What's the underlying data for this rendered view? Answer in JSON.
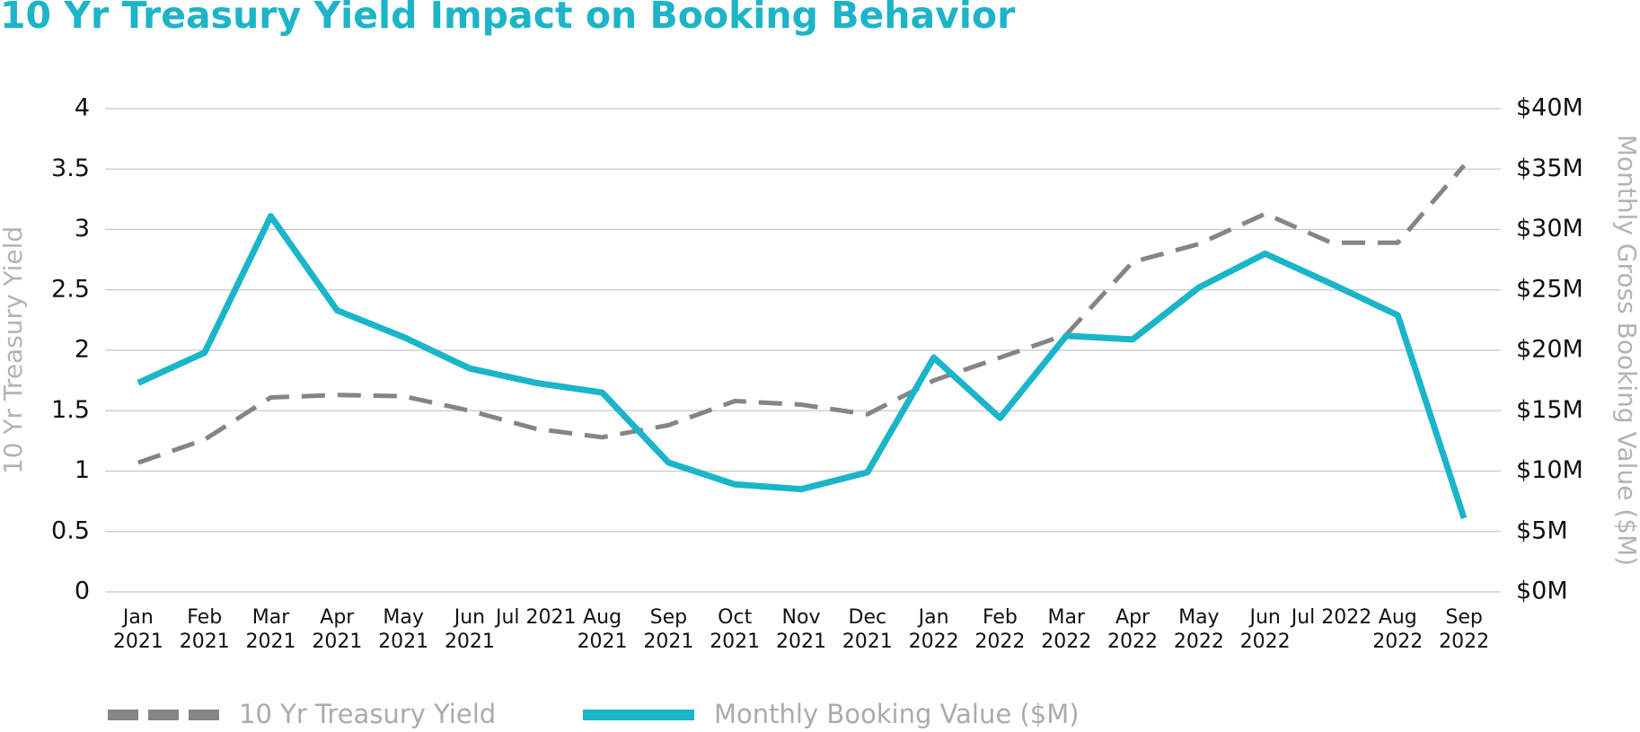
{
  "chart_data": {
    "type": "line",
    "title": "10 Yr Treasury Yield Impact on Booking Behavior",
    "y_label": "10 Yr Treasury Yield",
    "y2_label": "Monthly Gross Booking Value ($M)",
    "categories": [
      "Jan 2021",
      "Feb 2021",
      "Mar 2021",
      "Apr 2021",
      "May 2021",
      "Jun 2021",
      "Jul 2021",
      "Aug 2021",
      "Sep 2021",
      "Oct 2021",
      "Nov 2021",
      "Dec 2021",
      "Jan 2022",
      "Feb 2022",
      "Mar 2022",
      "Apr 2022",
      "May 2022",
      "Jun 2022",
      "Jul 2022",
      "Aug 2022",
      "Sep 2022"
    ],
    "series": [
      {
        "name": "10 Yr Treasury Yield",
        "color": "#858585",
        "dashed": true,
        "axis": "y",
        "values": [
          1.07,
          1.26,
          1.61,
          1.63,
          1.62,
          1.5,
          1.35,
          1.28,
          1.38,
          1.58,
          1.55,
          1.47,
          1.75,
          1.94,
          2.13,
          2.73,
          2.88,
          3.13,
          2.89,
          2.89,
          3.53
        ]
      },
      {
        "name": "Monthly Booking Value ($M)",
        "color": "#1ab5c9",
        "dashed": false,
        "axis": "y2",
        "values": [
          17.3,
          19.8,
          31.1,
          23.3,
          21.1,
          18.5,
          17.3,
          16.5,
          10.7,
          8.9,
          8.5,
          9.9,
          19.4,
          14.4,
          21.2,
          20.9,
          25.2,
          28.0,
          25.5,
          22.9,
          6.1
        ]
      }
    ],
    "ylim": [
      0,
      4
    ],
    "yticks": [
      0,
      0.5,
      1,
      1.5,
      2,
      2.5,
      3,
      3.5,
      4
    ],
    "y2lim": [
      0,
      40
    ],
    "y2ticks": [
      {
        "value": 0,
        "label": "$0M"
      },
      {
        "value": 5,
        "label": "$5M"
      },
      {
        "value": 10,
        "label": "$10M"
      },
      {
        "value": 15,
        "label": "$15M"
      },
      {
        "value": 20,
        "label": "$20M"
      },
      {
        "value": 25,
        "label": "$25M"
      },
      {
        "value": 30,
        "label": "$30M"
      },
      {
        "value": 35,
        "label": "$35M"
      },
      {
        "value": 40,
        "label": "$40M"
      }
    ],
    "grid": true,
    "legend": "bottom"
  }
}
